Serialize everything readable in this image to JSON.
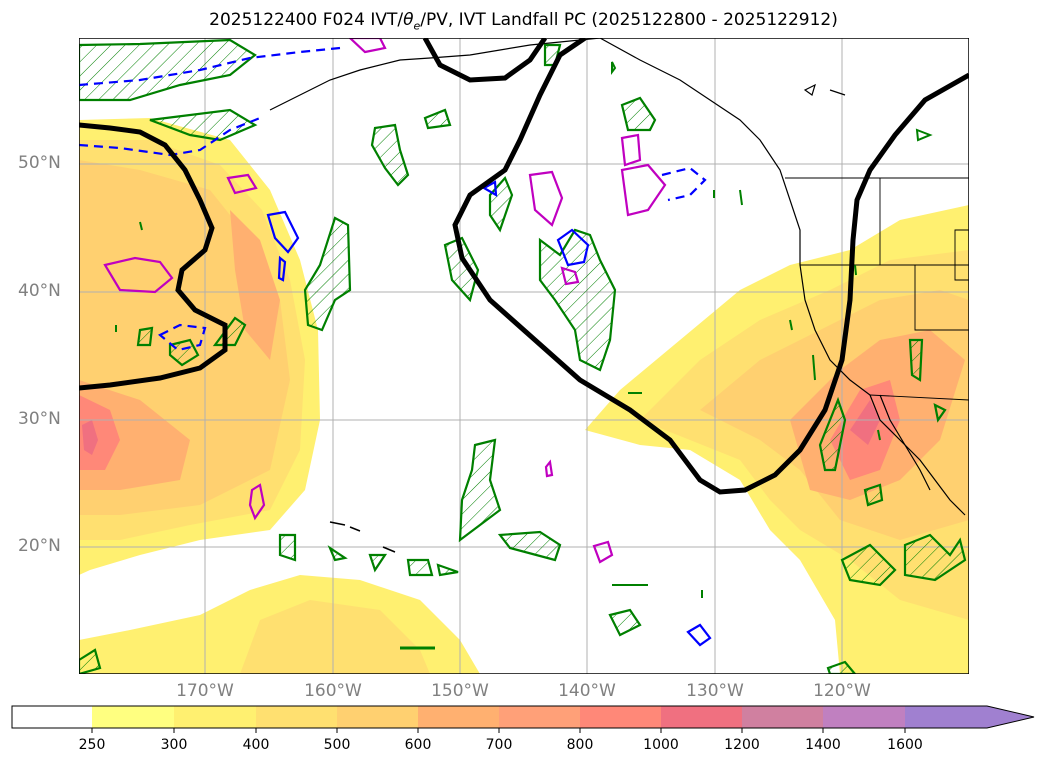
{
  "title_main": "2025122400 F024 IVT/",
  "title_theta": "θ",
  "title_sub": "e",
  "title_rest": "/PV, IVT Landfall PC (2025122800 - 2025122912)",
  "lat_labels": [
    "50°N",
    "40°N",
    "30°N",
    "20°N"
  ],
  "lon_labels": [
    "170°W",
    "160°W",
    "150°W",
    "140°W",
    "130°W",
    "120°W"
  ],
  "colorbar": {
    "ticks": [
      "250",
      "300",
      "400",
      "500",
      "600",
      "700",
      "800",
      "1000",
      "1200",
      "1400",
      "1600"
    ],
    "colors": [
      "#ffffff",
      "#ffff80",
      "#fff070",
      "#ffe070",
      "#ffd070",
      "#ffb070",
      "#ffa078",
      "#ff8878",
      "#f07080",
      "#d080a0",
      "#c080c0",
      "#a080d0"
    ],
    "extend": "max"
  },
  "legend_colors": {
    "pv_contour": "#000000",
    "green_contour": "#008000",
    "blue_contour": "#0000ff",
    "magenta_contour": "#c000c0",
    "grid": "#b0b0b0",
    "coast": "#000000"
  }
}
